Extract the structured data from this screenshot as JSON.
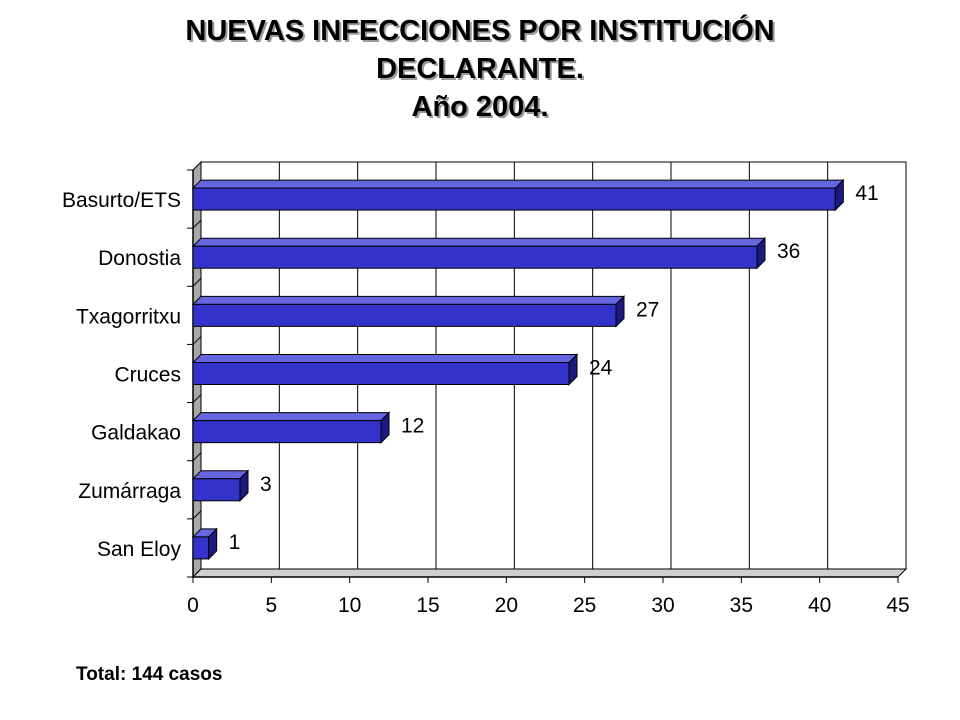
{
  "chart_data": {
    "type": "bar",
    "orientation": "horizontal",
    "title_lines": [
      "NUEVAS INFECCIONES POR INSTITUCIÓN",
      "DECLARANTE.",
      "Año 2004."
    ],
    "categories": [
      "Basurto/ETS",
      "Donostia",
      "Txagorritxu",
      "Cruces",
      "Galdakao",
      "Zumárraga",
      "San Eloy"
    ],
    "values": [
      41,
      36,
      27,
      24,
      12,
      3,
      1
    ],
    "data_labels": [
      "41",
      "36",
      "27",
      "24",
      "12",
      "3",
      "1"
    ],
    "xlim": [
      0,
      45
    ],
    "xticks": [
      "0",
      "5",
      "10",
      "15",
      "20",
      "25",
      "30",
      "35",
      "40",
      "45"
    ],
    "xlabel": "",
    "ylabel": "",
    "grid": "vertical",
    "bar_color": "#3333cc",
    "bar_side_color": "#1a1a80",
    "bar_top_color": "#6666e0"
  },
  "footer": {
    "total": "Total: 144 casos"
  }
}
